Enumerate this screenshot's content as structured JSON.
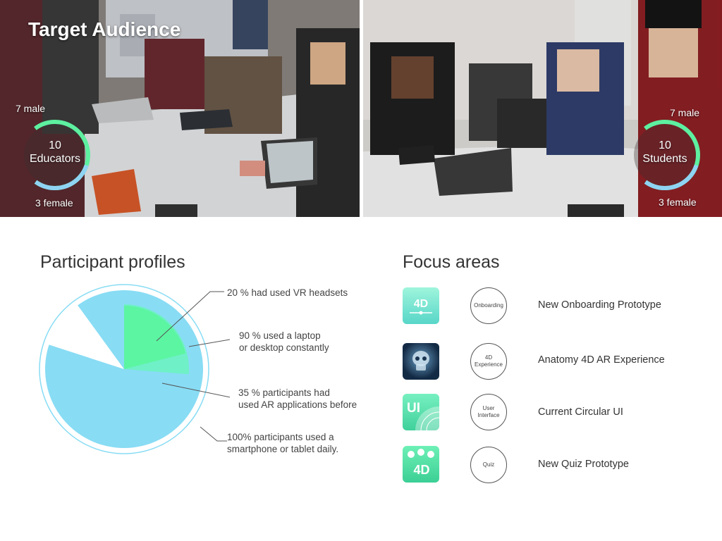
{
  "hero": {
    "title": "Target Audience",
    "educators": {
      "count": "10",
      "label": "Educators",
      "male": "7 male",
      "female": "3 female"
    },
    "students": {
      "count": "10",
      "label": "Students",
      "male": "7 male",
      "female": "3 female"
    }
  },
  "profiles": {
    "title": "Participant profiles",
    "labels": [
      {
        "line1": "20 % had used VR headsets",
        "line2": ""
      },
      {
        "line1": "90 % used a laptop",
        "line2": "or desktop constantly"
      },
      {
        "line1": "35 % participants had",
        "line2": "used AR applications before"
      },
      {
        "line1": "100% participants used a",
        "line2": "smartphone or tablet daily."
      }
    ]
  },
  "chart_data": {
    "type": "pie",
    "categories": [
      "had used VR headsets",
      "used a laptop or desktop constantly",
      "participants had used AR applications before",
      "participants used a smartphone or tablet daily"
    ],
    "values": [
      20,
      90,
      35,
      100
    ],
    "unit": "%"
  },
  "focus": {
    "title": "Focus areas",
    "items": [
      {
        "icon": "onboarding-4d-icon",
        "circle": "Onboarding",
        "label": "New Onboarding Prototype"
      },
      {
        "icon": "skull-xray-icon",
        "circle": "4D Experience",
        "label": "Anatomy  4D AR Experience"
      },
      {
        "icon": "ui-icon",
        "circle": "User Interface",
        "label": "Current Circular UI"
      },
      {
        "icon": "quiz-4d-icon",
        "circle": "Quiz",
        "label": "New Quiz Prototype"
      }
    ],
    "icon_text": {
      "onboarding": "4D",
      "ui": "UI",
      "quiz": "4D"
    }
  },
  "colors": {
    "ring_green": "#5cf0a0",
    "ring_blue": "#8ed4f2",
    "pie_blue": "#88dcf4",
    "pie_green": "#5cf5a2",
    "pie_teal": "#6ff0c6"
  }
}
